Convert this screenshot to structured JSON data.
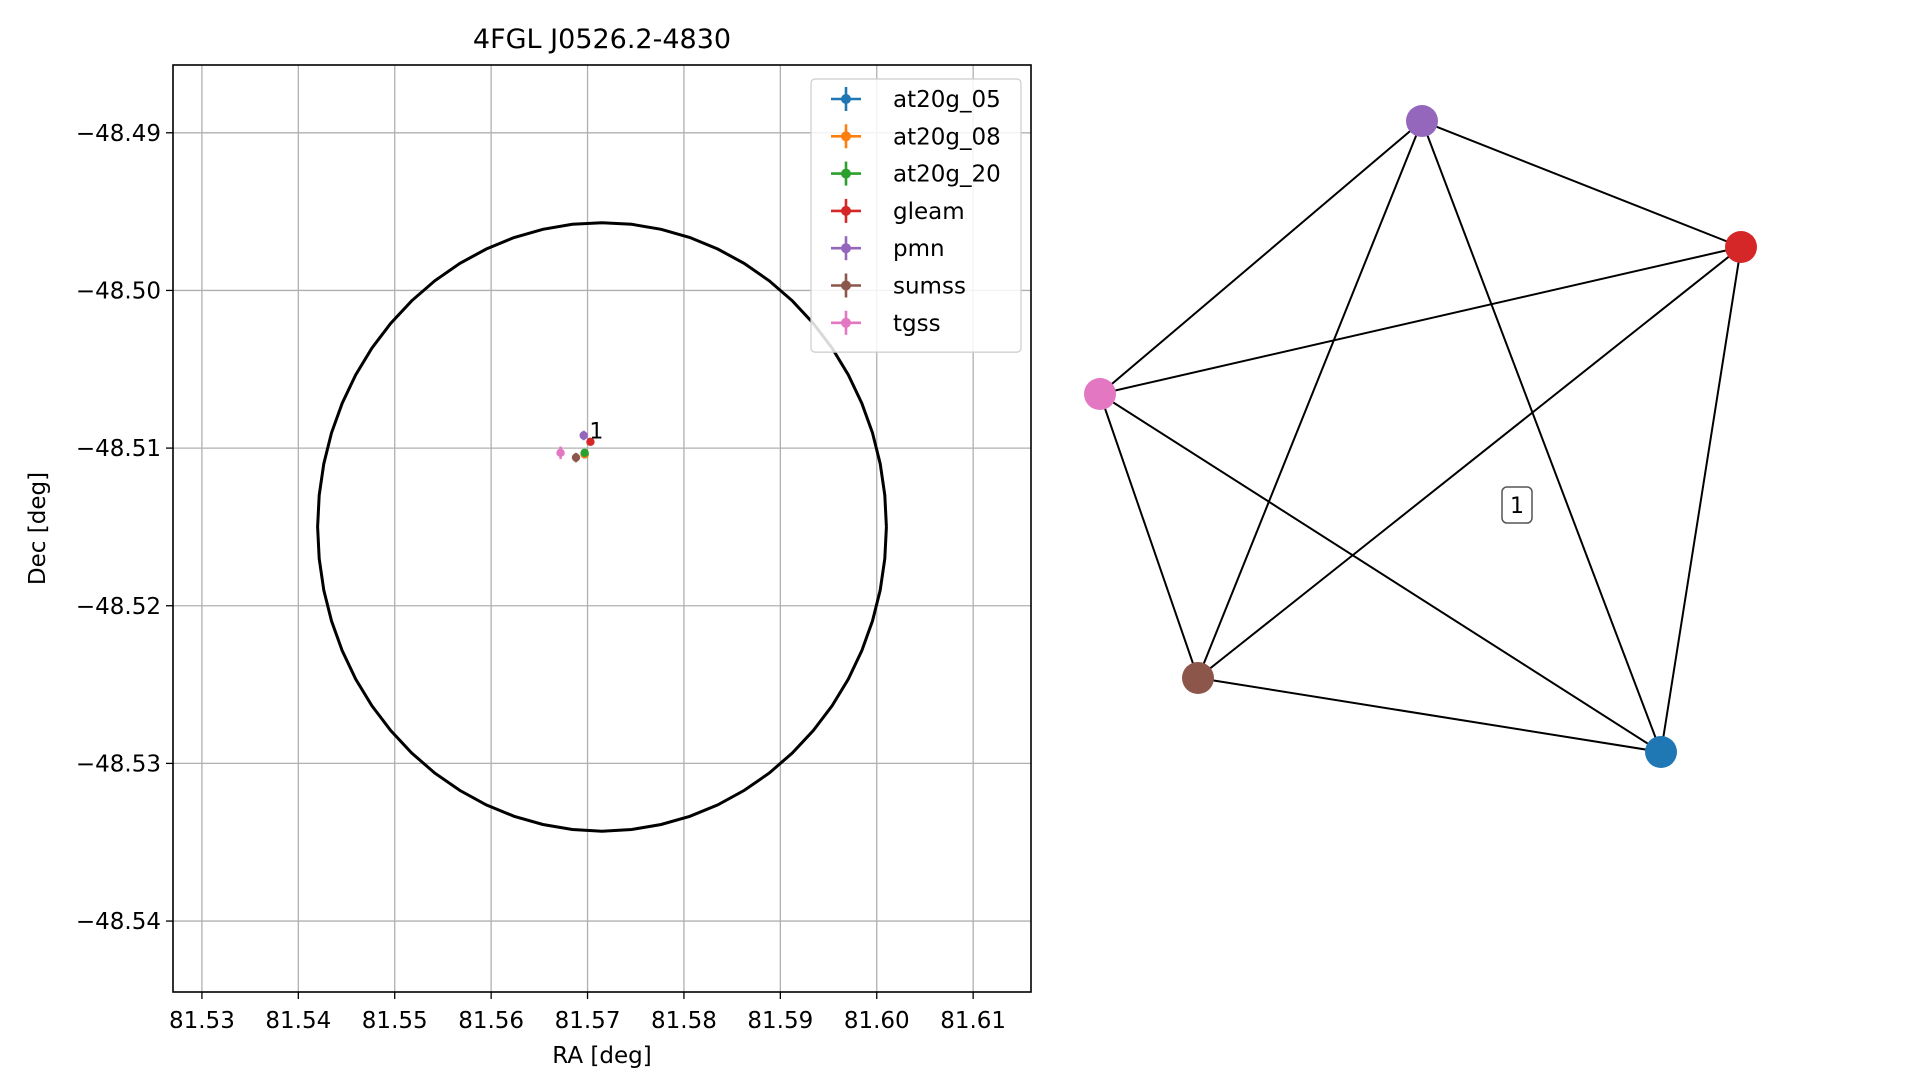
{
  "chart_data": [
    {
      "type": "scatter",
      "title": "4FGL J0526.2-4830",
      "xlabel": "RA [deg]",
      "ylabel": "Dec [deg]",
      "xlim": [
        81.527,
        81.616
      ],
      "ylim": [
        -48.5445,
        -48.4857
      ],
      "xticks": [
        81.53,
        81.54,
        81.55,
        81.56,
        81.57,
        81.58,
        81.59,
        81.6,
        81.61
      ],
      "xtick_labels": [
        "81.53",
        "81.54",
        "81.55",
        "81.56",
        "81.57",
        "81.58",
        "81.59",
        "81.60",
        "81.61"
      ],
      "yticks": [
        -48.49,
        -48.5,
        -48.51,
        -48.52,
        -48.53,
        -48.54
      ],
      "ytick_labels": [
        "−48.49",
        "−48.50",
        "−48.51",
        "−48.52",
        "−48.53",
        "−48.54"
      ],
      "grid": true,
      "legend_position": "top-right",
      "circle": {
        "center": [
          81.5715,
          -48.515
        ],
        "radius_ra": 0.0295,
        "radius_dec": 0.0193
      },
      "annotations": [
        {
          "text": "1",
          "x": 81.5705,
          "y": -48.5097
        }
      ],
      "series": [
        {
          "name": "at20g_05",
          "color": "#1f77b4",
          "points": [
            {
              "x": 81.5697,
              "y": -48.5104,
              "xerr": 0.0002,
              "yerr": 0.0001
            }
          ]
        },
        {
          "name": "at20g_08",
          "color": "#ff7f0e",
          "points": [
            {
              "x": 81.5697,
              "y": -48.5104,
              "xerr": 0.0002,
              "yerr": 0.0001
            }
          ]
        },
        {
          "name": "at20g_20",
          "color": "#2ca02c",
          "points": [
            {
              "x": 81.5697,
              "y": -48.5103,
              "xerr": 0.0003,
              "yerr": 0.0002
            }
          ]
        },
        {
          "name": "gleam",
          "color": "#d62728",
          "points": [
            {
              "x": 81.5703,
              "y": -48.5096,
              "xerr": 0.0002,
              "yerr": 0.0002
            }
          ]
        },
        {
          "name": "pmn",
          "color": "#9467bd",
          "points": [
            {
              "x": 81.5696,
              "y": -48.5092,
              "xerr": 0.0002,
              "yerr": 0.0003
            }
          ]
        },
        {
          "name": "sumss",
          "color": "#8c564b",
          "points": [
            {
              "x": 81.5688,
              "y": -48.5106,
              "xerr": 0.0003,
              "yerr": 0.0003
            }
          ]
        },
        {
          "name": "tgss",
          "color": "#e377c2",
          "points": [
            {
              "x": 81.5672,
              "y": -48.5103,
              "xerr": 0.0003,
              "yerr": 0.0004
            }
          ]
        }
      ]
    },
    {
      "type": "network",
      "nodes": [
        {
          "id": "purple",
          "color": "#9467bd"
        },
        {
          "id": "red",
          "color": "#d62728"
        },
        {
          "id": "pink",
          "color": "#e377c2"
        },
        {
          "id": "brown",
          "color": "#8c564b"
        },
        {
          "id": "blue",
          "color": "#1f77b4"
        }
      ],
      "edges": [
        [
          "purple",
          "red"
        ],
        [
          "purple",
          "pink"
        ],
        [
          "purple",
          "brown"
        ],
        [
          "purple",
          "blue"
        ],
        [
          "red",
          "pink"
        ],
        [
          "red",
          "brown"
        ],
        [
          "red",
          "blue"
        ],
        [
          "pink",
          "brown"
        ],
        [
          "pink",
          "blue"
        ],
        [
          "brown",
          "blue"
        ]
      ],
      "label": "1"
    }
  ]
}
